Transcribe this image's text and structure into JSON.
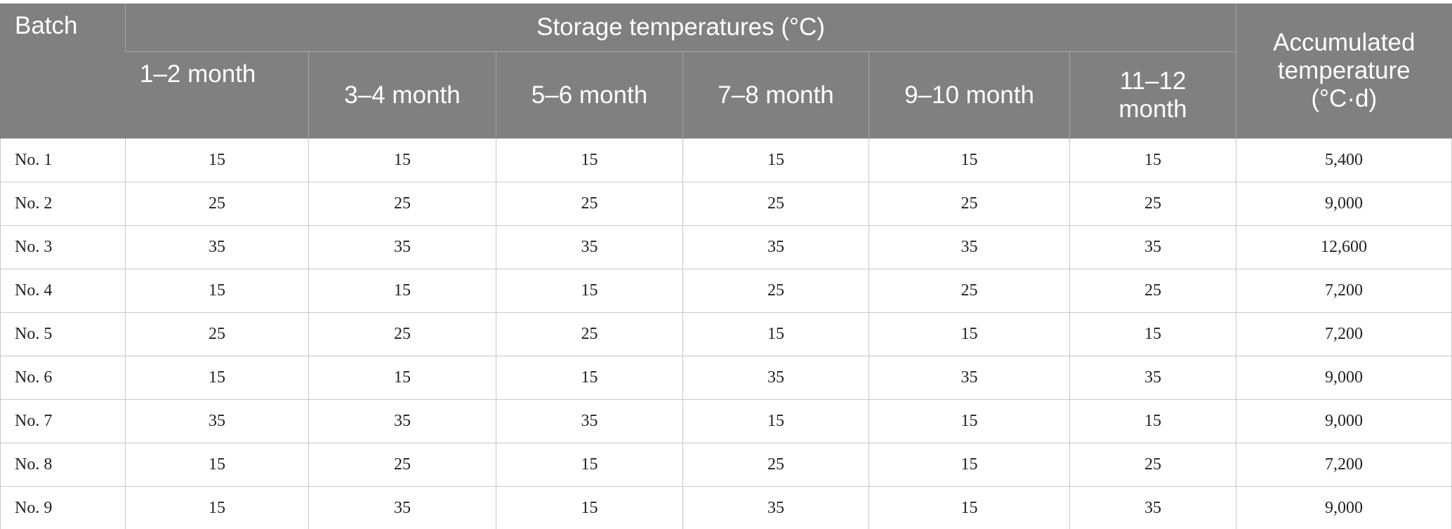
{
  "table": {
    "header": {
      "batch": "Batch",
      "group": "Storage temperatures (°C)",
      "columns": [
        "1–2 month",
        "3–4 month",
        "5–6 month",
        "7–8 month",
        "9–10 month",
        "11–12 month"
      ],
      "accumulated": "Accumulated temperature (°C·d)"
    },
    "rows": [
      [
        "No. 1",
        "15",
        "15",
        "15",
        "15",
        "15",
        "15",
        "5,400"
      ],
      [
        "No. 2",
        "25",
        "25",
        "25",
        "25",
        "25",
        "25",
        "9,000"
      ],
      [
        "No. 3",
        "35",
        "35",
        "35",
        "35",
        "35",
        "35",
        "12,600"
      ],
      [
        "No. 4",
        "15",
        "15",
        "15",
        "25",
        "25",
        "25",
        "7,200"
      ],
      [
        "No. 5",
        "25",
        "25",
        "25",
        "15",
        "15",
        "15",
        "7,200"
      ],
      [
        "No. 6",
        "15",
        "15",
        "15",
        "35",
        "35",
        "35",
        "9,000"
      ],
      [
        "No. 7",
        "35",
        "35",
        "35",
        "15",
        "15",
        "15",
        "9,000"
      ],
      [
        "No. 8",
        "15",
        "25",
        "15",
        "25",
        "15",
        "25",
        "7,200"
      ],
      [
        "No. 9",
        "15",
        "35",
        "15",
        "35",
        "15",
        "35",
        "9,000"
      ]
    ]
  }
}
